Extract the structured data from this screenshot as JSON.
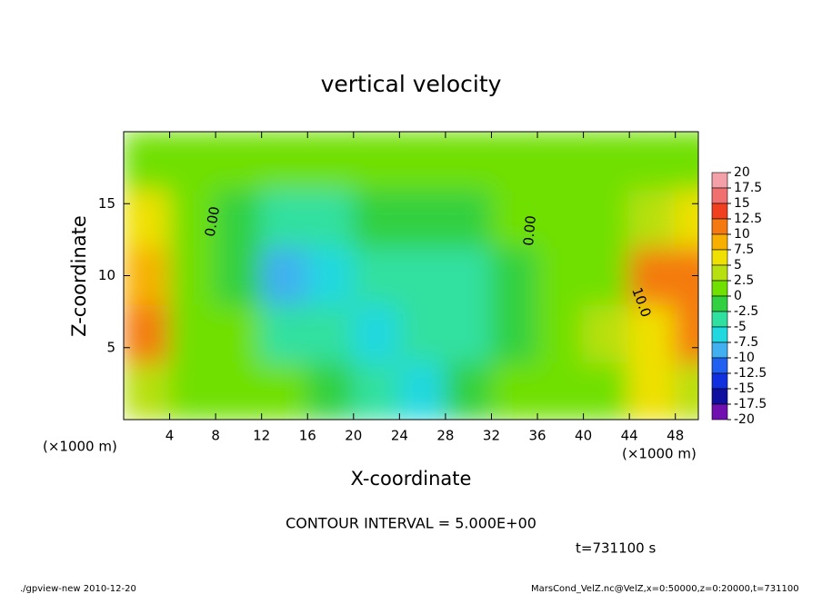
{
  "chart_data": {
    "type": "heatmap",
    "title": "vertical velocity",
    "x_label": "X-coordinate",
    "y_label": "Z-coordinate",
    "x_unit": "(×1000 m)",
    "y_unit": "(×1000 m)",
    "contour_interval": "CONTOUR INTERVAL = 5.000E+00",
    "time": "t=731100 s",
    "footer_left": "./gpview-new  2010-12-20",
    "footer_right": "MarsCond_VelZ.nc@VelZ,x=0:50000,z=0:20000,t=731100",
    "contour_labels": [
      "0.00",
      "0.00",
      "10.0"
    ],
    "xlim": [
      0,
      50
    ],
    "ylim": [
      0,
      20
    ],
    "xticks": [
      4,
      8,
      12,
      16,
      20,
      24,
      28,
      32,
      36,
      40,
      44,
      48
    ],
    "yticks": [
      5,
      10,
      15
    ],
    "x": [
      2,
      6,
      10,
      14,
      18,
      22,
      26,
      30,
      34,
      38,
      42,
      46,
      50
    ],
    "y": [
      2,
      6,
      10,
      14,
      18
    ],
    "values": [
      [
        3,
        0,
        1,
        0,
        -1,
        -3,
        -6,
        -1,
        1,
        0,
        2,
        5,
        3
      ],
      [
        10,
        1,
        0,
        -3,
        -4,
        -7,
        -5,
        -4,
        -2,
        0,
        3,
        7,
        12
      ],
      [
        8,
        1,
        -1,
        -8,
        -7,
        -4,
        -3,
        -5,
        -2,
        1,
        2,
        10,
        11
      ],
      [
        5,
        1,
        -2,
        -5,
        -3,
        -2,
        -1,
        -2,
        0,
        0,
        1,
        4,
        5
      ],
      [
        1,
        0.5,
        0,
        0,
        0,
        0,
        0,
        0,
        0,
        0,
        0,
        1,
        1
      ]
    ],
    "levels": [
      20,
      17.5,
      15,
      12.5,
      10,
      7.5,
      5,
      2.5,
      0,
      -2.5,
      -5,
      -7.5,
      -10,
      -12.5,
      -15,
      -17.5,
      -20
    ],
    "colors": [
      "#f4a0a8",
      "#f07070",
      "#f04020",
      "#f47a10",
      "#f8b000",
      "#f0e000",
      "#b8e010",
      "#70e000",
      "#30d040",
      "#30e0a0",
      "#20d8e0",
      "#40b0f0",
      "#2060f0",
      "#1030e0",
      "#1010a0",
      "#7010b0"
    ]
  }
}
